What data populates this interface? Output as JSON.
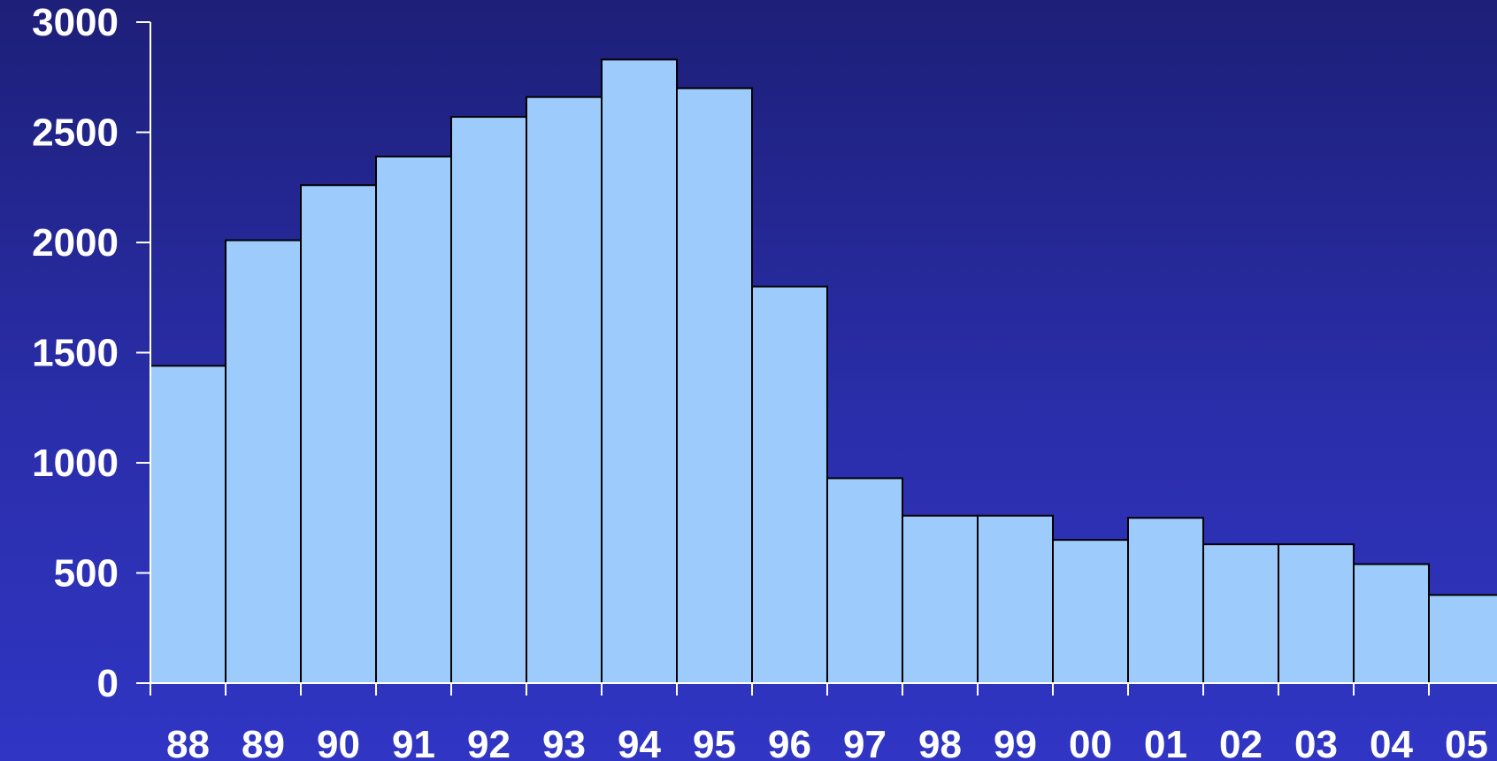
{
  "chart_data": {
    "type": "bar",
    "categories": [
      "88",
      "89",
      "90",
      "91",
      "92",
      "93",
      "94",
      "95",
      "96",
      "97",
      "98",
      "99",
      "00",
      "01",
      "02",
      "03",
      "04",
      "05"
    ],
    "values": [
      1440,
      2010,
      2260,
      2390,
      2570,
      2660,
      2830,
      2700,
      1800,
      930,
      760,
      760,
      650,
      750,
      630,
      630,
      540,
      400
    ],
    "title": "",
    "xlabel": "",
    "ylabel": "",
    "ylim": [
      0,
      3000
    ],
    "yticks": [
      0,
      500,
      1000,
      1500,
      2000,
      2500,
      3000
    ],
    "grid": false,
    "colors": {
      "bar_fill": "#9ccbfc",
      "bar_stroke": "#000000",
      "axis": "#ffffff",
      "text": "#ffffff",
      "background_top": "#1d1f78",
      "background_bottom": "#3035c4"
    }
  }
}
